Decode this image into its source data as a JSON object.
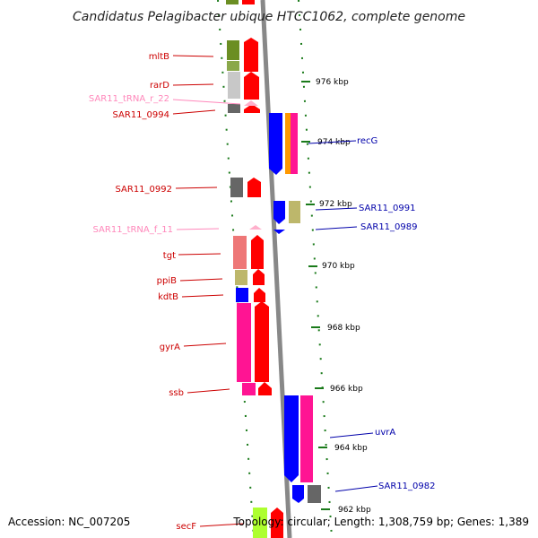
{
  "title": "Candidatus Pelagibacter ubique HTCC1062, complete genome",
  "footer": {
    "accession": "Accession: NC_007205",
    "summary": "Topology: circular; Length: 1,308,759 bp; Genes: 1,389"
  },
  "colors": {
    "backbone": "#888888",
    "tick": "#1a7a1a",
    "forward_label": "#cc0000",
    "reverse_label": "#0000aa",
    "trna_label": "#ff88bb"
  },
  "ticks": [
    "976 kbp",
    "974 kbp",
    "972 kbp",
    "970 kbp",
    "968 kbp",
    "966 kbp",
    "964 kbp",
    "962 kbp"
  ],
  "features_left": [
    "mltB",
    "rarD",
    "SAR11_tRNA_r_22",
    "SAR11_0994",
    "SAR11_0992",
    "SAR11_tRNA_f_11",
    "tgt",
    "ppiB",
    "kdtB",
    "gyrA",
    "ssb",
    "secF"
  ],
  "features_right": [
    "recG",
    "SAR11_0991",
    "SAR11_0989",
    "uvrA",
    "SAR11_0982"
  ]
}
